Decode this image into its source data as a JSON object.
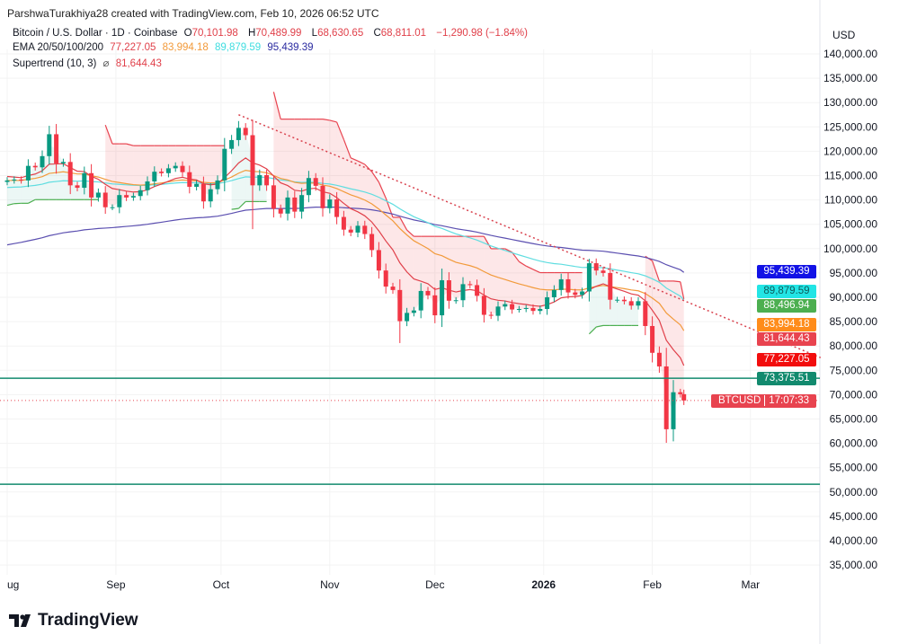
{
  "header": {
    "attribution": "ParshwaTurakhiya28 created with TradingView.com, Feb 10, 2026 06:52 UTC"
  },
  "legend": {
    "symbol": "Bitcoin / U.S. Dollar · 1D · Coinbase",
    "o_label": "O",
    "open": "70,101.98",
    "h_label": "H",
    "high": "70,489.99",
    "l_label": "L",
    "low": "68,630.65",
    "c_label": "C",
    "close": "68,811.01",
    "change": "−1,290.98 (−1.84%)",
    "ema_label": "EMA 20/50/100/200",
    "ema20": "77,227.05",
    "ema50": "83,994.18",
    "ema100": "89,879.59",
    "ema200": "95,439.39",
    "st_label": "Supertrend (10, 3)",
    "st_icon": "⌀",
    "st_value": "81,644.43"
  },
  "price_axis": {
    "currency": "USD",
    "ticks": [
      "140,000.00",
      "135,000.00",
      "130,000.00",
      "125,000.00",
      "120,000.00",
      "115,000.00",
      "110,000.00",
      "105,000.00",
      "100,000.00",
      "95,000.00",
      "90,000.00",
      "85,000.00",
      "80,000.00",
      "75,000.00",
      "70,000.00",
      "65,000.00",
      "60,000.00",
      "55,000.00",
      "50,000.00",
      "45,000.00",
      "40,000.00",
      "35,000.00"
    ],
    "range": [
      35000,
      140000
    ]
  },
  "price_tags": [
    {
      "text": "95,439.39",
      "color": "#1212e6",
      "value": 95439.39
    },
    {
      "text": "89,879.59",
      "color": "#22e5e5",
      "value": 89879.59,
      "dark": true
    },
    {
      "text": "88,496.94",
      "color": "#4caf50",
      "value": 88496.94
    },
    {
      "text": "83,994.18",
      "color": "#ff8c1a",
      "value": 83994.18
    },
    {
      "text": "81,644.43",
      "color": "#e8434f",
      "value": 81644.43
    },
    {
      "text": "77,227.05",
      "color": "#f20d0d",
      "value": 77227.05
    },
    {
      "text": "73,375.51",
      "color": "#128a6e",
      "value": 73375.51
    }
  ],
  "current": {
    "symbol": "BTCUSD",
    "countdown": "17:07:33",
    "price": 68811.01,
    "color": "#e8434f"
  },
  "time_axis": [
    {
      "label": "ug",
      "date": "2025-08-01"
    },
    {
      "label": "Sep",
      "date": "2025-09-01"
    },
    {
      "label": "Oct",
      "date": "2025-10-01"
    },
    {
      "label": "Nov",
      "date": "2025-11-01"
    },
    {
      "label": "Dec",
      "date": "2025-12-01"
    },
    {
      "label": "2026",
      "date": "2026-01-01",
      "bold": true
    },
    {
      "label": "Feb",
      "date": "2026-02-01"
    },
    {
      "label": "Mar",
      "date": "2026-03-01"
    }
  ],
  "logo": {
    "text": "TradingView"
  },
  "chart_data": {
    "type": "candlestick",
    "ylim": [
      35000,
      140000
    ],
    "closes": [
      [
        "2025-08-01",
        114.0
      ],
      [
        "2025-08-03",
        114.2
      ],
      [
        "2025-08-05",
        114.0
      ],
      [
        "2025-08-07",
        117.0
      ],
      [
        "2025-08-09",
        116.7
      ],
      [
        "2025-08-11",
        119.0
      ],
      [
        "2025-08-13",
        123.5
      ],
      [
        "2025-08-15",
        117.5
      ],
      [
        "2025-08-17",
        117.8
      ],
      [
        "2025-08-19",
        113.0
      ],
      [
        "2025-08-21",
        112.5
      ],
      [
        "2025-08-23",
        115.5
      ],
      [
        "2025-08-25",
        110.5
      ],
      [
        "2025-08-27",
        111.5
      ],
      [
        "2025-08-29",
        108.5
      ],
      [
        "2025-08-31",
        108.5
      ],
      [
        "2025-09-02",
        111.0
      ],
      [
        "2025-09-04",
        110.5
      ],
      [
        "2025-09-06",
        110.8
      ],
      [
        "2025-09-08",
        112.0
      ],
      [
        "2025-09-10",
        113.8
      ],
      [
        "2025-09-12",
        115.8
      ],
      [
        "2025-09-14",
        115.5
      ],
      [
        "2025-09-16",
        116.5
      ],
      [
        "2025-09-18",
        117.0
      ],
      [
        "2025-09-20",
        115.7
      ],
      [
        "2025-09-22",
        112.7
      ],
      [
        "2025-09-24",
        113.3
      ],
      [
        "2025-09-26",
        109.7
      ],
      [
        "2025-09-28",
        112.2
      ],
      [
        "2025-09-30",
        114.0
      ],
      [
        "2025-10-02",
        120.5
      ],
      [
        "2025-10-04",
        122.3
      ],
      [
        "2025-10-06",
        124.8
      ],
      [
        "2025-10-08",
        123.3
      ],
      [
        "2025-10-10",
        113.0
      ],
      [
        "2025-10-12",
        115.1
      ],
      [
        "2025-10-14",
        113.0
      ],
      [
        "2025-10-16",
        108.2
      ],
      [
        "2025-10-18",
        107.2
      ],
      [
        "2025-10-20",
        110.5
      ],
      [
        "2025-10-22",
        107.6
      ],
      [
        "2025-10-24",
        111.0
      ],
      [
        "2025-10-26",
        114.5
      ],
      [
        "2025-10-28",
        112.9
      ],
      [
        "2025-10-30",
        108.3
      ],
      [
        "2025-11-01",
        110.1
      ],
      [
        "2025-11-03",
        106.5
      ],
      [
        "2025-11-05",
        103.9
      ],
      [
        "2025-11-07",
        103.3
      ],
      [
        "2025-11-09",
        104.7
      ],
      [
        "2025-11-11",
        103.0
      ],
      [
        "2025-11-13",
        99.7
      ],
      [
        "2025-11-15",
        95.5
      ],
      [
        "2025-11-17",
        92.2
      ],
      [
        "2025-11-19",
        91.5
      ],
      [
        "2025-11-21",
        85.1
      ],
      [
        "2025-11-23",
        86.8
      ],
      [
        "2025-11-25",
        87.3
      ],
      [
        "2025-11-27",
        91.3
      ],
      [
        "2025-11-29",
        90.4
      ],
      [
        "2025-12-01",
        86.3
      ],
      [
        "2025-12-03",
        93.5
      ],
      [
        "2025-12-05",
        89.3
      ],
      [
        "2025-12-07",
        89.4
      ],
      [
        "2025-12-09",
        92.7
      ],
      [
        "2025-12-11",
        92.5
      ],
      [
        "2025-12-13",
        90.3
      ],
      [
        "2025-12-15",
        86.4
      ],
      [
        "2025-12-17",
        86.2
      ],
      [
        "2025-12-19",
        88.1
      ],
      [
        "2025-12-21",
        88.6
      ],
      [
        "2025-12-23",
        87.5
      ],
      [
        "2025-12-25",
        87.6
      ],
      [
        "2025-12-27",
        87.8
      ],
      [
        "2025-12-29",
        87.2
      ],
      [
        "2025-12-31",
        87.6
      ],
      [
        "2026-01-02",
        90.0
      ],
      [
        "2026-01-04",
        91.5
      ],
      [
        "2026-01-06",
        93.7
      ],
      [
        "2026-01-08",
        91.0
      ],
      [
        "2026-01-10",
        90.5
      ],
      [
        "2026-01-12",
        91.2
      ],
      [
        "2026-01-14",
        97.0
      ],
      [
        "2026-01-16",
        95.5
      ],
      [
        "2026-01-18",
        95.0
      ],
      [
        "2026-01-20",
        89.5
      ],
      [
        "2026-01-22",
        89.5
      ],
      [
        "2026-01-24",
        89.2
      ],
      [
        "2026-01-26",
        88.3
      ],
      [
        "2026-01-28",
        89.2
      ],
      [
        "2026-01-30",
        84.1
      ],
      [
        "2026-02-01",
        78.6
      ],
      [
        "2026-02-03",
        75.8
      ],
      [
        "2026-02-05",
        62.9
      ],
      [
        "2026-02-07",
        70.5
      ],
      [
        "2026-02-09",
        70.1
      ],
      [
        "2026-02-10",
        68.8
      ]
    ],
    "close_units": "thousand USD",
    "horizontal_lines": [
      {
        "value": 73375.51,
        "color": "#128a6e"
      },
      {
        "value": 51600,
        "color": "#128a6e"
      }
    ],
    "trendline": {
      "from": [
        "2025-10-06",
        127500
      ],
      "to": [
        "2026-03-21",
        77600
      ],
      "style": "dotted",
      "color": "#d9434f"
    },
    "ema_colors": {
      "ema20": "#e0404a",
      "ema50": "#f29a3a",
      "ema100": "#5fdde0",
      "ema200": "#5b4fb0"
    },
    "up_color": "#089981",
    "down_color": "#f23645"
  }
}
